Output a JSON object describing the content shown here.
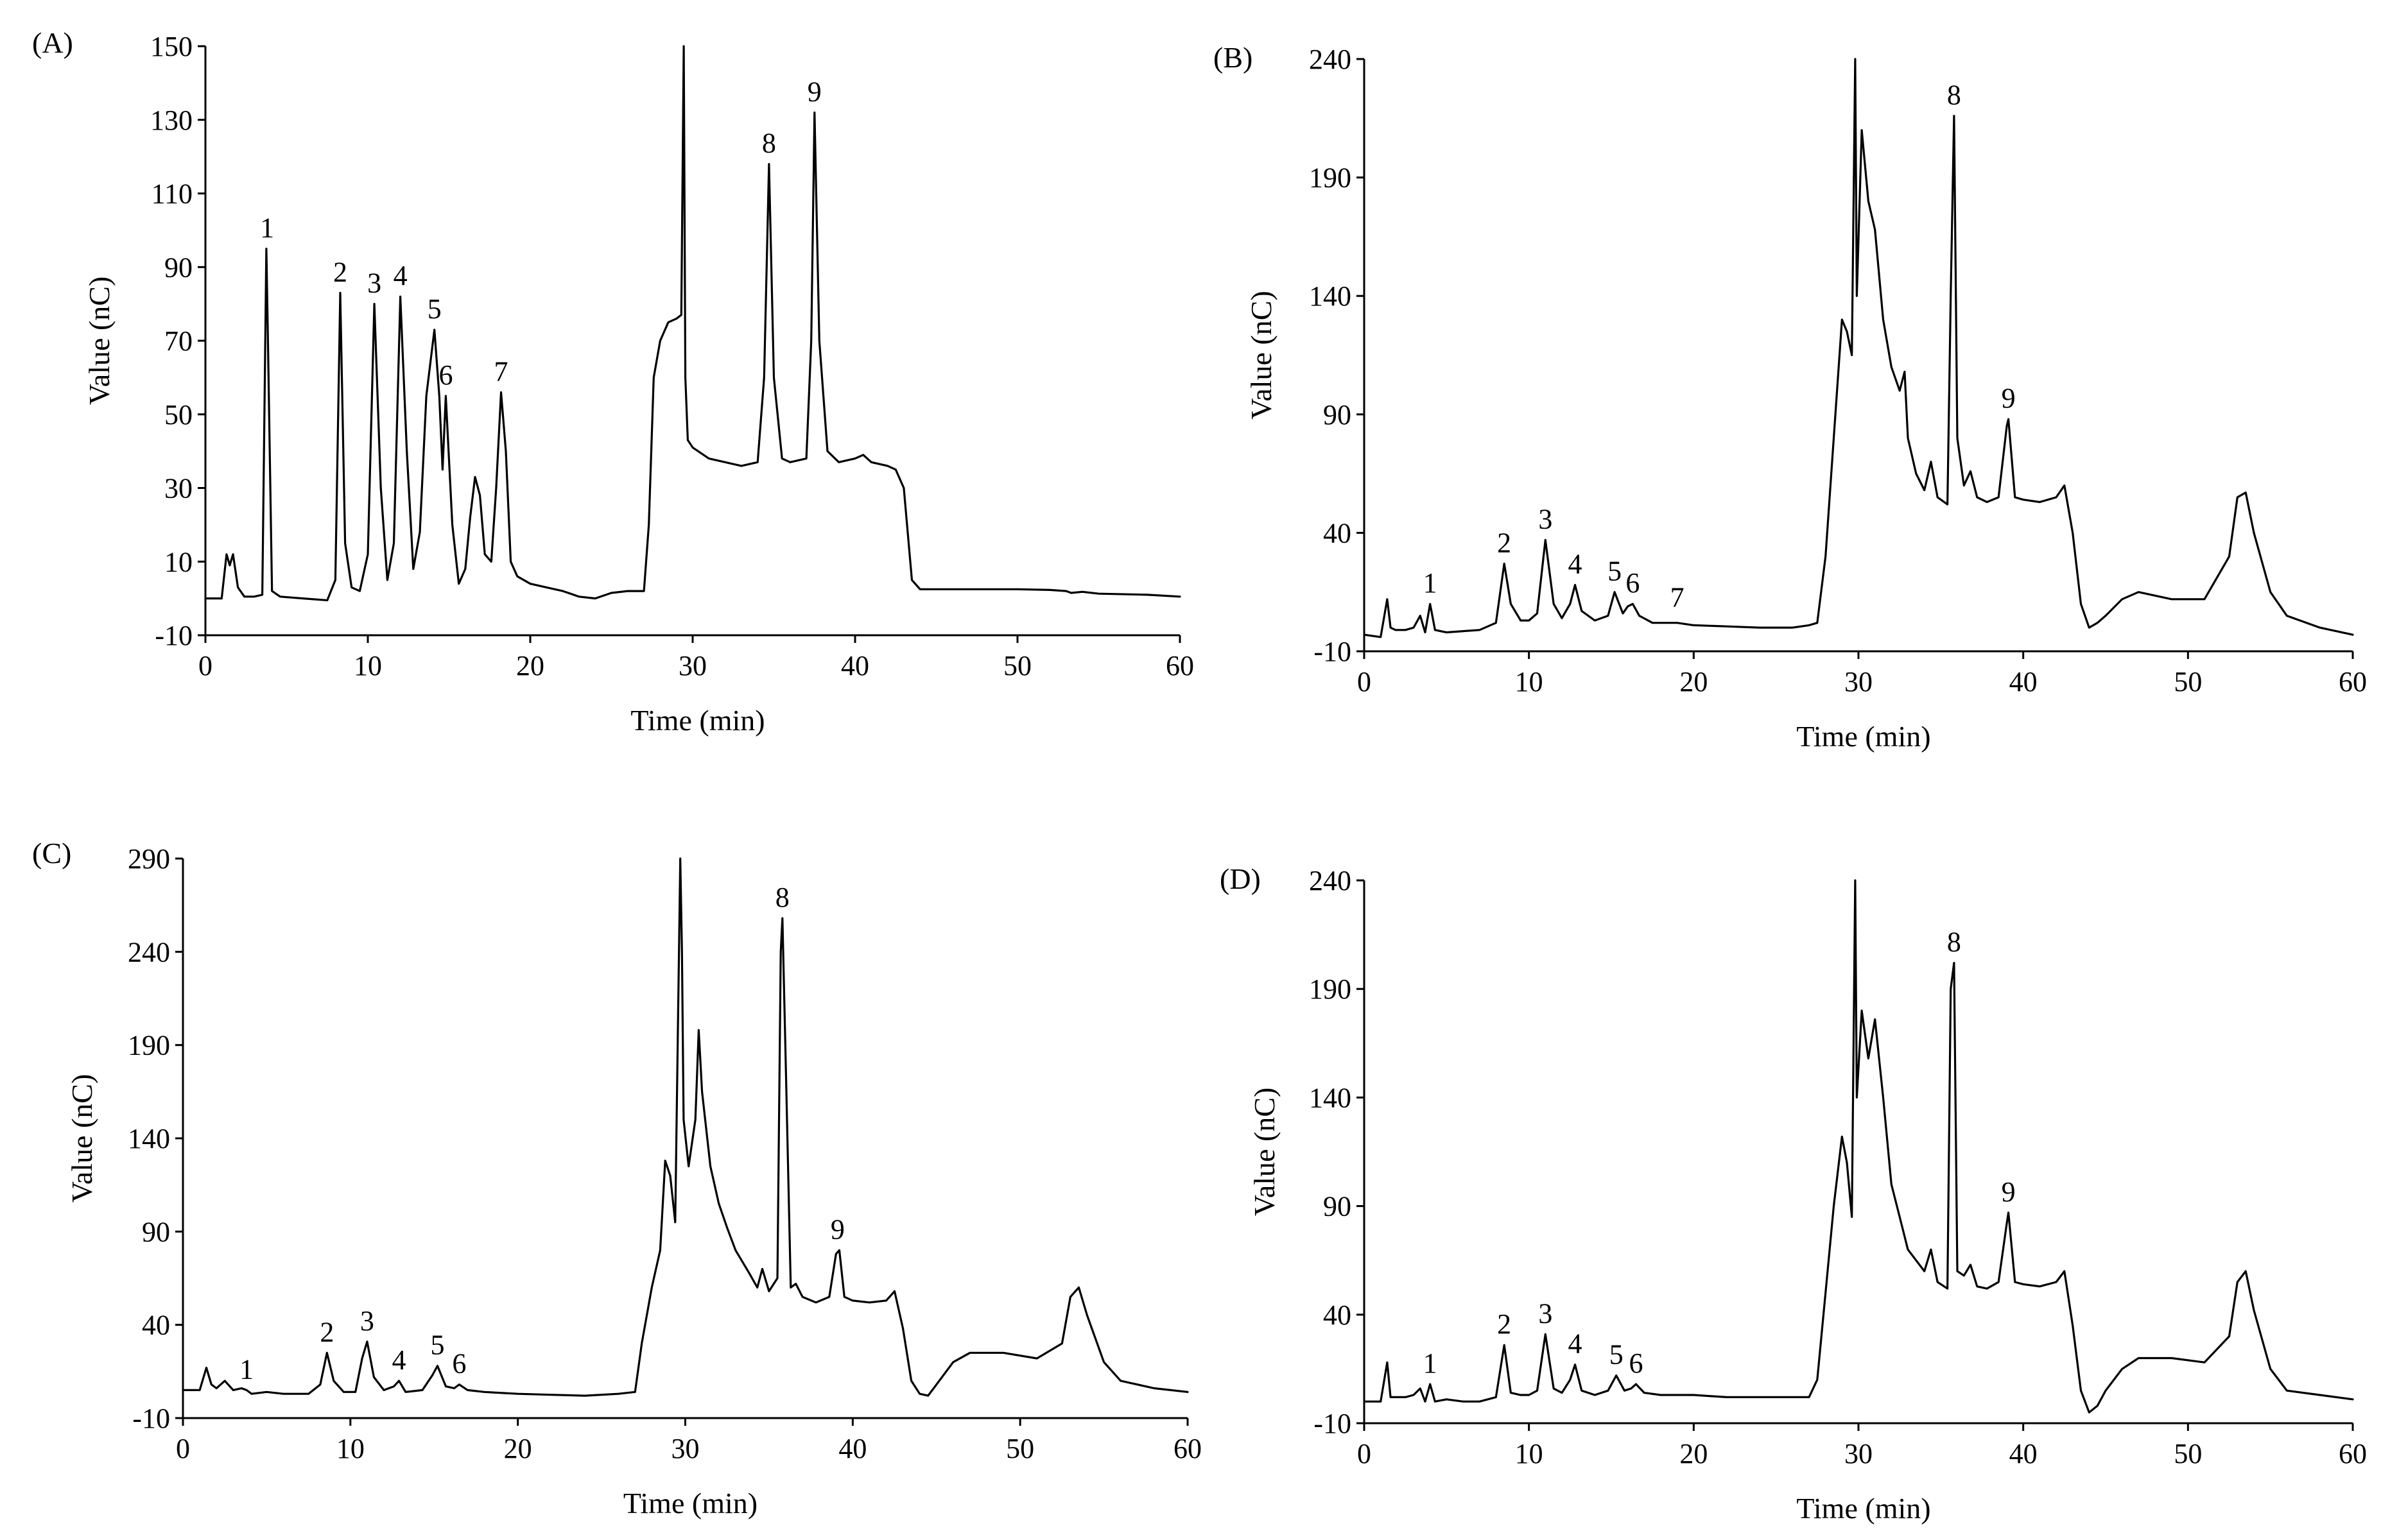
{
  "chart_data": [
    {
      "type": "line",
      "panel_label": "(A)",
      "xlabel": "Time (min)",
      "ylabel": "Value (nC)",
      "xlim": [
        0,
        60
      ],
      "ylim": [
        -10,
        150
      ],
      "xticks": [
        0,
        10,
        20,
        30,
        40,
        50,
        60
      ],
      "yticks": [
        -10,
        10,
        30,
        50,
        70,
        90,
        110,
        130,
        150
      ],
      "peaks": [
        {
          "label": "1",
          "x": 3.8,
          "y": 95
        },
        {
          "label": "2",
          "x": 8.3,
          "y": 83
        },
        {
          "label": "3",
          "x": 10.4,
          "y": 80
        },
        {
          "label": "4",
          "x": 12.0,
          "y": 82
        },
        {
          "label": "5",
          "x": 14.1,
          "y": 73
        },
        {
          "label": "6",
          "x": 14.8,
          "y": 55
        },
        {
          "label": "7",
          "x": 18.2,
          "y": 56
        },
        {
          "label": "8",
          "x": 34.7,
          "y": 118
        },
        {
          "label": "9",
          "x": 37.5,
          "y": 132
        }
      ],
      "series": [
        {
          "name": "chromatogram",
          "x": [
            0,
            1.0,
            1.3,
            1.5,
            1.7,
            2.0,
            2.4,
            3.0,
            3.5,
            3.75,
            3.85,
            4.1,
            4.6,
            6.0,
            7.5,
            8.0,
            8.3,
            8.6,
            9.0,
            9.5,
            10.0,
            10.4,
            10.8,
            11.2,
            11.6,
            12.0,
            12.4,
            12.8,
            13.2,
            13.6,
            14.1,
            14.4,
            14.6,
            14.8,
            15.2,
            15.6,
            16.0,
            16.3,
            16.6,
            16.9,
            17.2,
            17.6,
            17.9,
            18.2,
            18.5,
            18.8,
            19.2,
            20.0,
            21.0,
            22.0,
            23.0,
            24.0,
            25.0,
            26.0,
            27.0,
            27.3,
            27.6,
            28.0,
            28.5,
            29.0,
            29.3,
            29.45,
            29.55,
            29.7,
            30.0,
            31.0,
            32.0,
            33.0,
            34.0,
            34.4,
            34.7,
            35.0,
            35.5,
            36.0,
            37.0,
            37.3,
            37.5,
            37.8,
            38.3,
            39.0,
            40.0,
            40.5,
            41.0,
            42.0,
            42.5,
            43.0,
            43.5,
            44.0,
            45.0,
            47.0,
            50.0,
            52.0,
            53.0,
            53.3,
            54.0,
            55.0,
            58.0,
            60.0
          ],
          "y": [
            0,
            0,
            12,
            9,
            12,
            3,
            0.5,
            0.5,
            1,
            95,
            70,
            2,
            0.5,
            0,
            -0.5,
            5,
            83,
            15,
            3,
            2,
            12,
            80,
            30,
            5,
            15,
            82,
            40,
            8,
            18,
            55,
            73,
            55,
            35,
            55,
            20,
            4,
            8,
            22,
            33,
            28,
            12,
            10,
            30,
            56,
            40,
            10,
            6,
            4,
            3,
            2,
            0.5,
            0,
            1.5,
            2,
            2,
            20,
            60,
            70,
            75,
            76,
            77,
            150,
            60,
            43,
            41,
            38,
            37,
            36,
            37,
            60,
            118,
            60,
            38,
            37,
            38,
            70,
            132,
            70,
            40,
            37,
            38,
            39,
            37,
            36,
            35,
            30,
            5,
            2.5,
            2.5,
            2.5,
            2.5,
            2.3,
            2.0,
            1.5,
            1.8,
            1.3,
            1.0,
            0.5
          ]
        }
      ]
    },
    {
      "type": "line",
      "panel_label": "(B)",
      "xlabel": "Time (min)",
      "ylabel": "Value (nC)",
      "xlim": [
        0,
        60
      ],
      "ylim": [
        -10,
        240
      ],
      "xticks": [
        0,
        10,
        20,
        30,
        40,
        50,
        60
      ],
      "yticks": [
        -10,
        40,
        90,
        140,
        190,
        240
      ],
      "peaks": [
        {
          "label": "1",
          "x": 4.0,
          "y": 10
        },
        {
          "label": "2",
          "x": 8.5,
          "y": 27
        },
        {
          "label": "3",
          "x": 11.0,
          "y": 37
        },
        {
          "label": "4",
          "x": 12.8,
          "y": 18
        },
        {
          "label": "5",
          "x": 15.2,
          "y": 15
        },
        {
          "label": "6",
          "x": 16.3,
          "y": 10
        },
        {
          "label": "7",
          "x": 19.0,
          "y": 4
        },
        {
          "label": "8",
          "x": 35.8,
          "y": 216
        },
        {
          "label": "9",
          "x": 39.1,
          "y": 88
        }
      ],
      "series": [
        {
          "name": "chromatogram",
          "x": [
            0,
            1.0,
            1.4,
            1.6,
            1.9,
            2.5,
            3.0,
            3.4,
            3.7,
            4.0,
            4.3,
            5.0,
            6.0,
            7.0,
            8.0,
            8.5,
            8.9,
            9.5,
            10.0,
            10.5,
            11.0,
            11.5,
            12.0,
            12.5,
            12.8,
            13.2,
            14.0,
            14.8,
            15.2,
            15.7,
            16.0,
            16.3,
            16.7,
            17.5,
            19.0,
            20.0,
            22.0,
            24.0,
            26.0,
            27.0,
            27.5,
            28.0,
            28.5,
            29.0,
            29.3,
            29.6,
            29.8,
            29.9,
            30.2,
            30.6,
            31.0,
            31.5,
            32.0,
            32.5,
            32.8,
            33.0,
            33.5,
            34.0,
            34.4,
            34.8,
            35.4,
            35.6,
            35.8,
            36.0,
            36.4,
            36.8,
            37.2,
            37.8,
            38.5,
            39.0,
            39.1,
            39.5,
            40.0,
            41.0,
            42.0,
            42.5,
            43.0,
            43.5,
            44.0,
            44.5,
            45.0,
            46.0,
            47.0,
            49.0,
            51.0,
            52.5,
            53.0,
            53.5,
            54.0,
            55.0,
            56.0,
            58.0,
            60.0
          ],
          "y": [
            -3,
            -4,
            12,
            0,
            -1,
            -1,
            0,
            5,
            -2,
            10,
            -1,
            -2,
            -1.5,
            -1,
            2,
            27,
            10,
            3,
            3,
            6,
            37,
            10,
            4,
            10,
            18,
            7,
            3,
            5,
            15,
            6,
            9,
            10,
            5,
            2,
            2,
            1,
            0.5,
            0,
            0,
            1,
            2,
            30,
            80,
            130,
            125,
            115,
            240,
            140,
            210,
            180,
            168,
            130,
            110,
            100,
            108,
            80,
            65,
            58,
            70,
            55,
            52,
            140,
            216,
            80,
            60,
            66,
            55,
            53,
            55,
            85,
            88,
            55,
            54,
            53,
            55,
            60,
            40,
            10,
            0,
            2,
            5,
            12,
            15,
            12,
            12,
            30,
            55,
            57,
            40,
            15,
            5,
            0,
            -3
          ]
        }
      ]
    },
    {
      "type": "line",
      "panel_label": "(C)",
      "xlabel": "Time (min)",
      "ylabel": "Value (nC)",
      "xlim": [
        0,
        60
      ],
      "ylim": [
        -10,
        290
      ],
      "xticks": [
        0,
        10,
        20,
        30,
        40,
        50,
        60
      ],
      "yticks": [
        -10,
        40,
        90,
        140,
        190,
        240,
        290
      ],
      "peaks": [
        {
          "label": "1",
          "x": 3.8,
          "y": 5
        },
        {
          "label": "2",
          "x": 8.6,
          "y": 25
        },
        {
          "label": "3",
          "x": 11.0,
          "y": 31
        },
        {
          "label": "4",
          "x": 12.9,
          "y": 10
        },
        {
          "label": "5",
          "x": 15.2,
          "y": 18
        },
        {
          "label": "6",
          "x": 16.5,
          "y": 8
        },
        {
          "label": "8",
          "x": 35.8,
          "y": 258
        },
        {
          "label": "9",
          "x": 39.1,
          "y": 80
        }
      ],
      "series": [
        {
          "name": "chromatogram",
          "x": [
            0,
            1.0,
            1.4,
            1.7,
            2.0,
            2.5,
            3.0,
            3.5,
            3.8,
            4.1,
            5.0,
            6.0,
            7.5,
            8.2,
            8.6,
            9.0,
            9.6,
            10.3,
            10.7,
            11.0,
            11.4,
            12.0,
            12.6,
            12.9,
            13.3,
            14.3,
            14.9,
            15.2,
            15.7,
            16.2,
            16.5,
            17.0,
            18.0,
            20.0,
            22.0,
            24.0,
            26.0,
            27.0,
            27.4,
            28.0,
            28.5,
            28.8,
            29.1,
            29.4,
            29.7,
            29.8,
            29.9,
            30.2,
            30.6,
            30.8,
            31.0,
            31.5,
            32.0,
            32.5,
            33.0,
            33.8,
            34.3,
            34.6,
            35.0,
            35.5,
            35.7,
            35.8,
            36.0,
            36.3,
            36.6,
            37.0,
            37.8,
            38.6,
            39.0,
            39.2,
            39.5,
            40.0,
            41.0,
            42.0,
            42.5,
            43.0,
            43.5,
            44.0,
            44.5,
            45.0,
            46.0,
            47.0,
            49.0,
            51.0,
            52.5,
            53.0,
            53.5,
            54.0,
            55.0,
            56.0,
            58.0,
            60.0
          ],
          "y": [
            5,
            5,
            17,
            8,
            6,
            10,
            5,
            6,
            5,
            3,
            4,
            3,
            3,
            8,
            25,
            10,
            4,
            4,
            22,
            31,
            12,
            5,
            7,
            10,
            4,
            5,
            13,
            18,
            7,
            6,
            8,
            5,
            4,
            3,
            2.5,
            2,
            3,
            4,
            30,
            60,
            80,
            128,
            120,
            95,
            290,
            240,
            150,
            125,
            150,
            198,
            165,
            125,
            105,
            92,
            80,
            68,
            60,
            70,
            58,
            65,
            240,
            258,
            180,
            60,
            62,
            55,
            52,
            55,
            78,
            80,
            55,
            53,
            52,
            53,
            58,
            38,
            10,
            3,
            2,
            8,
            20,
            25,
            25,
            22,
            30,
            55,
            60,
            45,
            20,
            10,
            6,
            4
          ]
        }
      ]
    },
    {
      "type": "line",
      "panel_label": "(D)",
      "xlabel": "Time (min)",
      "ylabel": "Value (nC)",
      "xlim": [
        0,
        60
      ],
      "ylim": [
        -10,
        240
      ],
      "xticks": [
        0,
        10,
        20,
        30,
        40,
        50,
        60
      ],
      "yticks": [
        -10,
        40,
        90,
        140,
        190,
        240
      ],
      "peaks": [
        {
          "label": "1",
          "x": 4.0,
          "y": 8
        },
        {
          "label": "2",
          "x": 8.5,
          "y": 26
        },
        {
          "label": "3",
          "x": 11.0,
          "y": 31
        },
        {
          "label": "4",
          "x": 12.8,
          "y": 17
        },
        {
          "label": "5",
          "x": 15.3,
          "y": 12
        },
        {
          "label": "6",
          "x": 16.5,
          "y": 8
        },
        {
          "label": "8",
          "x": 35.8,
          "y": 202
        },
        {
          "label": "9",
          "x": 39.1,
          "y": 87
        }
      ],
      "series": [
        {
          "name": "chromatogram",
          "x": [
            0,
            1.0,
            1.4,
            1.6,
            1.9,
            2.5,
            3.0,
            3.4,
            3.7,
            4.0,
            4.3,
            5.0,
            6.0,
            7.0,
            8.0,
            8.5,
            8.9,
            9.5,
            10.0,
            10.5,
            11.0,
            11.5,
            12.0,
            12.5,
            12.8,
            13.2,
            14.0,
            14.8,
            15.3,
            15.8,
            16.2,
            16.5,
            17.0,
            18.0,
            20.0,
            22.0,
            24.0,
            26.0,
            27.0,
            27.5,
            28.0,
            28.5,
            29.0,
            29.3,
            29.6,
            29.8,
            29.9,
            30.2,
            30.6,
            31.0,
            31.5,
            32.0,
            32.5,
            33.0,
            33.5,
            34.0,
            34.4,
            34.8,
            35.4,
            35.6,
            35.8,
            36.0,
            36.4,
            36.8,
            37.2,
            37.8,
            38.5,
            39.0,
            39.1,
            39.5,
            40.0,
            41.0,
            42.0,
            42.5,
            43.0,
            43.5,
            44.0,
            44.5,
            45.0,
            46.0,
            47.0,
            49.0,
            51.0,
            52.5,
            53.0,
            53.5,
            54.0,
            55.0,
            56.0,
            58.0,
            60.0
          ],
          "y": [
            0,
            0,
            18,
            2,
            2,
            2,
            3,
            6,
            0,
            8,
            0,
            1,
            0,
            0,
            2,
            26,
            4,
            3,
            3,
            5,
            31,
            6,
            4,
            10,
            17,
            5,
            3,
            5,
            12,
            5,
            6,
            8,
            4,
            3,
            3,
            2,
            2,
            2,
            2,
            10,
            50,
            90,
            122,
            110,
            85,
            240,
            140,
            180,
            158,
            176,
            140,
            100,
            85,
            70,
            65,
            60,
            70,
            55,
            52,
            190,
            202,
            60,
            58,
            63,
            53,
            52,
            55,
            82,
            87,
            55,
            54,
            53,
            55,
            60,
            35,
            5,
            -5,
            -2,
            5,
            15,
            20,
            20,
            18,
            30,
            55,
            60,
            42,
            15,
            5,
            3,
            1
          ]
        }
      ]
    }
  ]
}
